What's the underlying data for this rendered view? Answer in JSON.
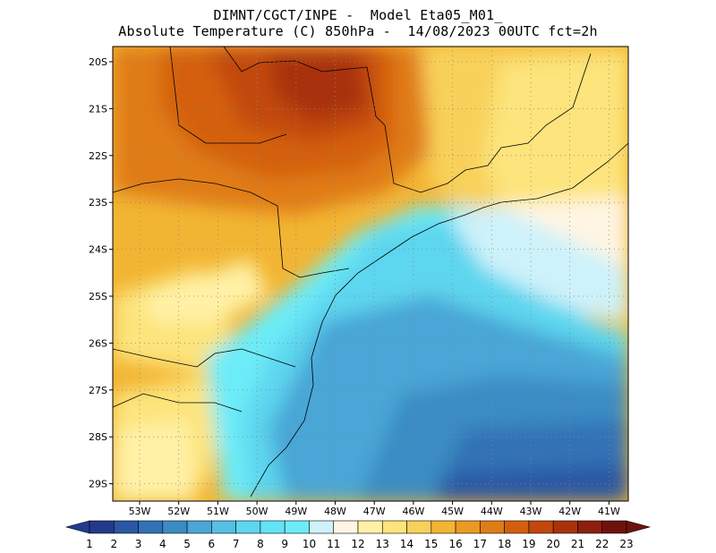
{
  "header": {
    "title_line1": "DIMNT/CGCT/INPE -  Model Eta05_M01_",
    "title_line2": "Absolute Temperature (C) 850hPa -  14/08/2023 00UTC fct=2h"
  },
  "map": {
    "lat_labels": [
      "20S",
      "21S",
      "22S",
      "23S",
      "24S",
      "25S",
      "26S",
      "27S",
      "28S",
      "29S"
    ],
    "lon_labels": [
      "53W",
      "52W",
      "51W",
      "50W",
      "49W",
      "48W",
      "47W",
      "46W",
      "45W",
      "44W",
      "43W",
      "42W",
      "41W"
    ],
    "grid": "dotted"
  },
  "colorbar": {
    "labels": [
      "1",
      "2",
      "3",
      "4",
      "5",
      "6",
      "7",
      "8",
      "9",
      "10",
      "11",
      "12",
      "13",
      "14",
      "15",
      "16",
      "17",
      "18",
      "19",
      "20",
      "21",
      "22",
      "23"
    ],
    "colors": [
      "#233a8c",
      "#2a57a4",
      "#3272b5",
      "#3b8cc4",
      "#49a6d6",
      "#55c0e5",
      "#5dd6ef",
      "#63e3f5",
      "#6cecf8",
      "#cdf2fa",
      "#fff5e3",
      "#fff1a6",
      "#fde47c",
      "#f8d15a",
      "#f2b533",
      "#eb9922",
      "#e07c16",
      "#d4600f",
      "#c2480b",
      "#a8330b",
      "#8c200c",
      "#6e120e"
    ]
  }
}
